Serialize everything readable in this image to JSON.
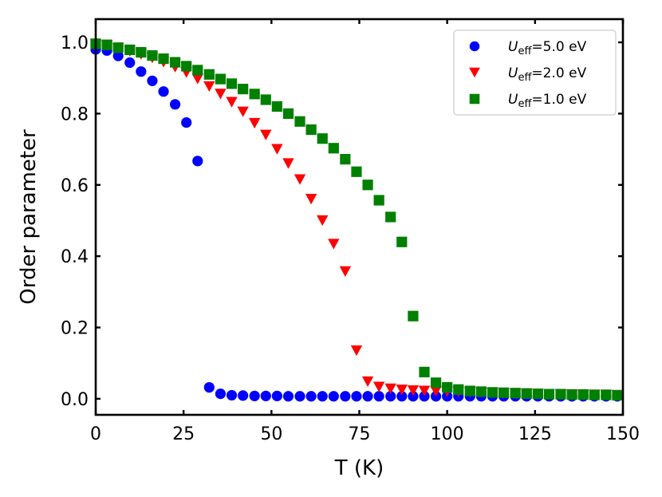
{
  "chart_data": {
    "type": "scatter",
    "xlabel": "T (K)",
    "ylabel": "Order parameter",
    "xlim": [
      0,
      150
    ],
    "ylim": [
      -0.045,
      1.065
    ],
    "xticks": [
      0,
      25,
      50,
      75,
      100,
      125,
      150
    ],
    "xtick_labels": [
      "0",
      "25",
      "50",
      "75",
      "100",
      "125",
      "150"
    ],
    "yticks": [
      0.0,
      0.2,
      0.4,
      0.6,
      0.8,
      1.0
    ],
    "ytick_labels": [
      "0.0",
      "0.2",
      "0.4",
      "0.6",
      "0.8",
      "1.0"
    ],
    "legend_position": "top-right",
    "series": [
      {
        "name": "U_eff=5.0 eV",
        "label_main": "U",
        "label_sub": "eff",
        "label_rest": "=5.0 eV",
        "marker": "circle",
        "color": "#0000ff",
        "x": [
          0,
          3.2,
          6.4,
          9.7,
          12.9,
          16.1,
          19.3,
          22.6,
          25.8,
          29.0,
          32.3,
          35.5,
          38.7,
          41.9,
          45.2,
          48.4,
          51.6,
          54.8,
          58.1,
          61.3,
          64.5,
          67.7,
          71.0,
          74.2,
          77.4,
          80.6,
          83.9,
          87.1,
          90.3,
          93.5,
          96.8,
          100.0,
          103.2,
          106.5,
          109.7,
          112.9,
          116.1,
          119.4,
          122.6,
          125.8,
          129.0,
          132.3,
          135.5,
          138.7,
          141.9,
          145.2,
          148.4
        ],
        "y": [
          0.98,
          0.977,
          0.962,
          0.943,
          0.918,
          0.892,
          0.862,
          0.826,
          0.775,
          0.667,
          0.032,
          0.014,
          0.01,
          0.009,
          0.008,
          0.008,
          0.008,
          0.007,
          0.007,
          0.007,
          0.007,
          0.007,
          0.007,
          0.007,
          0.007,
          0.007,
          0.007,
          0.007,
          0.007,
          0.007,
          0.007,
          0.007,
          0.007,
          0.007,
          0.007,
          0.007,
          0.007,
          0.007,
          0.007,
          0.007,
          0.007,
          0.007,
          0.007,
          0.007,
          0.007,
          0.007,
          0.007
        ]
      },
      {
        "name": "U_eff=2.0 eV",
        "label_main": "U",
        "label_sub": "eff",
        "label_rest": "=2.0 eV",
        "marker": "triangle-down",
        "color": "#ff0000",
        "x": [
          0,
          3.2,
          6.4,
          9.7,
          12.9,
          16.1,
          19.3,
          22.6,
          25.8,
          29.0,
          32.3,
          35.5,
          38.7,
          41.9,
          45.2,
          48.4,
          51.6,
          54.8,
          58.1,
          61.3,
          64.5,
          67.7,
          71.0,
          74.2,
          77.4,
          80.6,
          83.9,
          87.1,
          90.3,
          93.5,
          96.8,
          100.0,
          103.2,
          106.5,
          109.7,
          112.9,
          116.1,
          119.4,
          122.6,
          125.8,
          129.0,
          132.3,
          135.5,
          138.7,
          141.9,
          145.2,
          148.4
        ],
        "y": [
          0.993,
          0.99,
          0.983,
          0.975,
          0.966,
          0.956,
          0.944,
          0.93,
          0.915,
          0.897,
          0.876,
          0.855,
          0.832,
          0.805,
          0.773,
          0.74,
          0.7,
          0.66,
          0.615,
          0.56,
          0.5,
          0.434,
          0.357,
          0.135,
          0.048,
          0.033,
          0.028,
          0.025,
          0.023,
          0.022,
          0.021,
          0.02,
          0.019,
          0.018,
          0.017,
          0.016,
          0.015,
          0.014,
          0.014,
          0.013,
          0.013,
          0.012,
          0.012,
          0.011,
          0.011,
          0.011,
          0.01
        ]
      },
      {
        "name": "U_eff=1.0 eV",
        "label_main": "U",
        "label_sub": "eff",
        "label_rest": "=1.0 eV",
        "marker": "square",
        "color": "#008000",
        "x": [
          0,
          3.2,
          6.4,
          9.7,
          12.9,
          16.1,
          19.3,
          22.6,
          25.8,
          29.0,
          32.3,
          35.5,
          38.7,
          41.9,
          45.2,
          48.4,
          51.6,
          54.8,
          58.1,
          61.3,
          64.5,
          67.7,
          71.0,
          74.2,
          77.4,
          80.6,
          83.9,
          87.1,
          90.3,
          93.5,
          96.8,
          100.0,
          103.2,
          106.5,
          109.7,
          112.9,
          116.1,
          119.4,
          122.6,
          125.8,
          129.0,
          132.3,
          135.5,
          138.7,
          141.9,
          145.2,
          148.4
        ],
        "y": [
          0.996,
          0.993,
          0.985,
          0.979,
          0.972,
          0.963,
          0.954,
          0.944,
          0.933,
          0.922,
          0.91,
          0.897,
          0.884,
          0.869,
          0.855,
          0.839,
          0.82,
          0.8,
          0.778,
          0.755,
          0.73,
          0.703,
          0.672,
          0.637,
          0.6,
          0.557,
          0.51,
          0.44,
          0.232,
          0.075,
          0.045,
          0.032,
          0.026,
          0.022,
          0.02,
          0.018,
          0.017,
          0.016,
          0.015,
          0.014,
          0.013,
          0.013,
          0.012,
          0.012,
          0.011,
          0.011,
          0.01
        ]
      }
    ]
  }
}
